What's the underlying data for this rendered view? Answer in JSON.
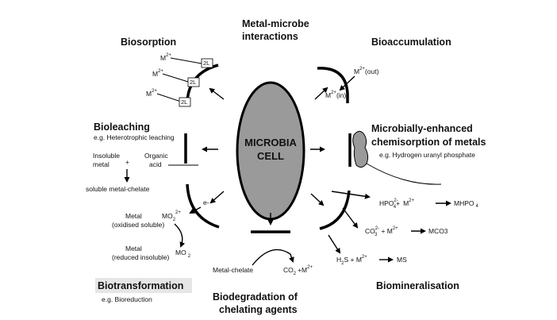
{
  "diagram": {
    "center": {
      "line1": "MICROBIA",
      "line2": "CELL"
    },
    "top": {
      "line1": "Metal-microbe",
      "line2": "interactions"
    },
    "biosorption": {
      "title": "Biosorption",
      "m_label": "M",
      "charge": "2+",
      "ligand": "2L"
    },
    "bioaccumulation": {
      "title": "Bioaccumulation",
      "m_out": "M",
      "m_out_charge": "2+",
      "m_out_suffix": "(out)",
      "m_in": "M",
      "m_in_charge": "2+",
      "m_in_suffix": "(in)"
    },
    "bioleaching": {
      "title": "Bioleaching",
      "subtitle": "e.g. Heterotrophic leaching",
      "insoluble1": "Insoluble",
      "insoluble2": "metal",
      "organic1": "Organic",
      "organic2": "acid",
      "plus": "+",
      "product": "soluble metal-chelate"
    },
    "chemisorption": {
      "title1": "Microbially-enhanced",
      "title2": "chemisorption of metals",
      "subtitle": "e.g. Hydrogen uranyl phosphate"
    },
    "biotransformation": {
      "title": "Biotransformation",
      "subtitle": "e.g. Bioreduction",
      "electron": "e-",
      "mo2_ion": "MO",
      "mo2_ion_sub": "2",
      "mo2_ion_charge": "2+",
      "metal_ox1": "Metal",
      "metal_ox2": "(oxidised soluble)",
      "mo2": "MO",
      "mo2_sub": "2",
      "metal_red1": "Metal",
      "metal_red2": "(reduced insoluble)"
    },
    "biodegradation": {
      "title1": "Biodegradation of",
      "title2": "chelating agents",
      "reactant": "Metal-chelate",
      "co2": "CO",
      "co2_sub": "2",
      "plus_m": "+M",
      "m_charge": "2+"
    },
    "biomineralisation": {
      "title": "Biomineralisation",
      "r1_hpo": "HPO",
      "r1_sub": "4",
      "r1_charge": "2-",
      "r1_plus": "+",
      "r1_m": "M",
      "r1_mcharge": "2+",
      "r1_product": "MHPO",
      "r1_product_sub": "4",
      "r2_co": "CO",
      "r2_sub": "3",
      "r2_charge": "2-",
      "r2_plus": "+ M",
      "r2_mcharge": "2+",
      "r2_product": "MCO",
      "r2_product_sub": "3",
      "r3_h2s": "H",
      "r3_sub": "2",
      "r3_s": "S + M",
      "r3_charge": "2+",
      "r3_product": "MS"
    }
  }
}
